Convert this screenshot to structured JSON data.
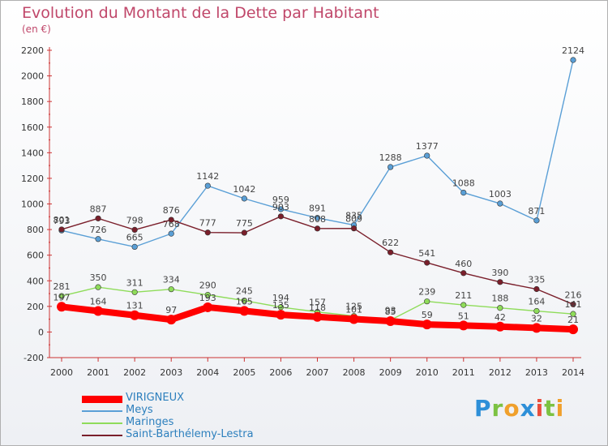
{
  "title": "Evolution du Montant de la Dette par Habitant",
  "subtitle": "(en €)",
  "logo": "Proxiti",
  "chart_data": {
    "type": "line",
    "x": [
      2000,
      2001,
      2002,
      2003,
      2004,
      2005,
      2006,
      2007,
      2008,
      2009,
      2010,
      2011,
      2012,
      2013,
      2014
    ],
    "ylim": [
      -200,
      2200
    ],
    "yticks": [
      -200,
      0,
      200,
      400,
      600,
      800,
      1000,
      1200,
      1400,
      1600,
      1800,
      2000,
      2200
    ],
    "grid": false,
    "legend_position": "bottom-left",
    "series": [
      {
        "name": "Meys",
        "color": "#5a9fd6",
        "values": [
          793,
          726,
          665,
          768,
          1142,
          1042,
          959,
          891,
          835,
          1288,
          1377,
          1088,
          1003,
          871,
          2124
        ]
      },
      {
        "name": "Saint-Barthélemy-Lestra",
        "color": "#7a1f2b",
        "values": [
          801,
          887,
          798,
          876,
          777,
          775,
          903,
          808,
          809,
          622,
          541,
          460,
          390,
          335,
          216
        ]
      },
      {
        "name": "Maringes",
        "color": "#8fdc5a",
        "values": [
          281,
          350,
          311,
          334,
          290,
          245,
          194,
          157,
          125,
          93,
          239,
          211,
          188,
          164,
          141
        ]
      },
      {
        "name": "VIRIGNEUX",
        "color": "#ff0000",
        "values": [
          197,
          164,
          131,
          97,
          193,
          165,
          135,
          118,
          101,
          85,
          59,
          51,
          42,
          32,
          21
        ]
      }
    ]
  }
}
